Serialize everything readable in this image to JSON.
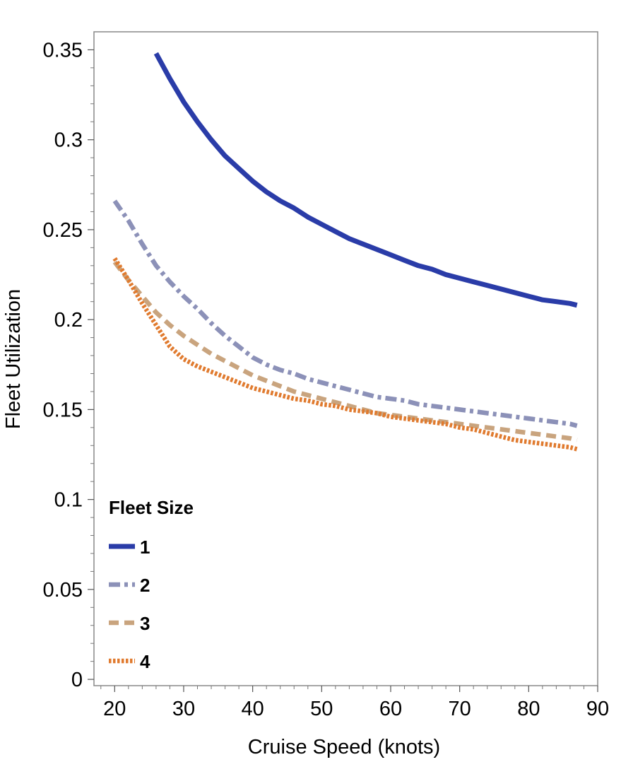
{
  "chart_data": {
    "type": "line",
    "title": "",
    "xlabel": "Cruise Speed (knots)",
    "ylabel": "Fleet Utilization",
    "xlim": [
      17,
      90
    ],
    "ylim": [
      -0.0035,
      0.36
    ],
    "xticks": [
      20,
      30,
      40,
      50,
      60,
      70,
      80,
      90
    ],
    "xtick_labels": [
      "20",
      "30",
      "40",
      "50",
      "60",
      "70",
      "80",
      "90"
    ],
    "yticks": [
      0,
      0.05,
      0.1,
      0.15,
      0.2,
      0.25,
      0.3,
      0.35
    ],
    "ytick_labels": [
      "0",
      "0.05",
      "0.1",
      "0.15",
      "0.2",
      "0.25",
      "0.3",
      "0.35"
    ],
    "grid": false,
    "legend": {
      "title": "Fleet Size",
      "position": "bottom-left"
    },
    "series": [
      {
        "name": "1",
        "color": "#2a3ca8",
        "style": "solid",
        "x": [
          26,
          28,
          30,
          32,
          34,
          36,
          38,
          40,
          42,
          44,
          46,
          48,
          50,
          52,
          54,
          56,
          58,
          60,
          62,
          64,
          66,
          68,
          70,
          72,
          74,
          76,
          78,
          80,
          82,
          84,
          86,
          87
        ],
        "y": [
          0.348,
          0.334,
          0.321,
          0.31,
          0.3,
          0.291,
          0.284,
          0.277,
          0.271,
          0.266,
          0.262,
          0.257,
          0.253,
          0.249,
          0.245,
          0.242,
          0.239,
          0.236,
          0.233,
          0.23,
          0.228,
          0.225,
          0.223,
          0.221,
          0.219,
          0.217,
          0.215,
          0.213,
          0.211,
          0.21,
          0.209,
          0.208
        ]
      },
      {
        "name": "2",
        "color": "#8c91b8",
        "style": "dashdot",
        "x": [
          20,
          22,
          24,
          26,
          28,
          30,
          32,
          34,
          36,
          38,
          40,
          42,
          44,
          46,
          48,
          50,
          52,
          54,
          56,
          58,
          60,
          62,
          64,
          66,
          68,
          70,
          72,
          74,
          76,
          78,
          80,
          82,
          84,
          86,
          87
        ],
        "y": [
          0.266,
          0.255,
          0.242,
          0.23,
          0.221,
          0.213,
          0.206,
          0.198,
          0.191,
          0.185,
          0.179,
          0.175,
          0.172,
          0.17,
          0.167,
          0.165,
          0.163,
          0.161,
          0.159,
          0.157,
          0.156,
          0.155,
          0.153,
          0.152,
          0.151,
          0.15,
          0.149,
          0.148,
          0.147,
          0.146,
          0.145,
          0.144,
          0.143,
          0.142,
          0.141
        ]
      },
      {
        "name": "3",
        "color": "#c9a47e",
        "style": "dashed",
        "x": [
          20,
          22,
          24,
          26,
          28,
          30,
          32,
          34,
          36,
          38,
          40,
          42,
          44,
          46,
          48,
          50,
          52,
          54,
          56,
          58,
          60,
          62,
          64,
          66,
          68,
          70,
          72,
          74,
          76,
          78,
          80,
          82,
          84,
          86,
          87
        ],
        "y": [
          0.232,
          0.222,
          0.213,
          0.204,
          0.197,
          0.191,
          0.186,
          0.181,
          0.177,
          0.173,
          0.169,
          0.166,
          0.163,
          0.16,
          0.158,
          0.156,
          0.154,
          0.152,
          0.15,
          0.148,
          0.147,
          0.146,
          0.145,
          0.144,
          0.143,
          0.142,
          0.141,
          0.14,
          0.139,
          0.138,
          0.137,
          0.136,
          0.135,
          0.134,
          0.133
        ]
      },
      {
        "name": "4",
        "color": "#e07a2e",
        "style": "dotted",
        "x": [
          20,
          22,
          24,
          26,
          28,
          30,
          32,
          34,
          36,
          38,
          40,
          42,
          44,
          46,
          48,
          50,
          52,
          54,
          56,
          58,
          60,
          62,
          64,
          66,
          68,
          70,
          72,
          74,
          76,
          78,
          80,
          82,
          84,
          86,
          87
        ],
        "y": [
          0.234,
          0.222,
          0.209,
          0.197,
          0.185,
          0.178,
          0.174,
          0.171,
          0.168,
          0.165,
          0.162,
          0.16,
          0.158,
          0.156,
          0.155,
          0.153,
          0.152,
          0.15,
          0.149,
          0.148,
          0.146,
          0.145,
          0.144,
          0.143,
          0.142,
          0.14,
          0.139,
          0.137,
          0.135,
          0.133,
          0.132,
          0.131,
          0.13,
          0.129,
          0.128
        ]
      }
    ]
  }
}
